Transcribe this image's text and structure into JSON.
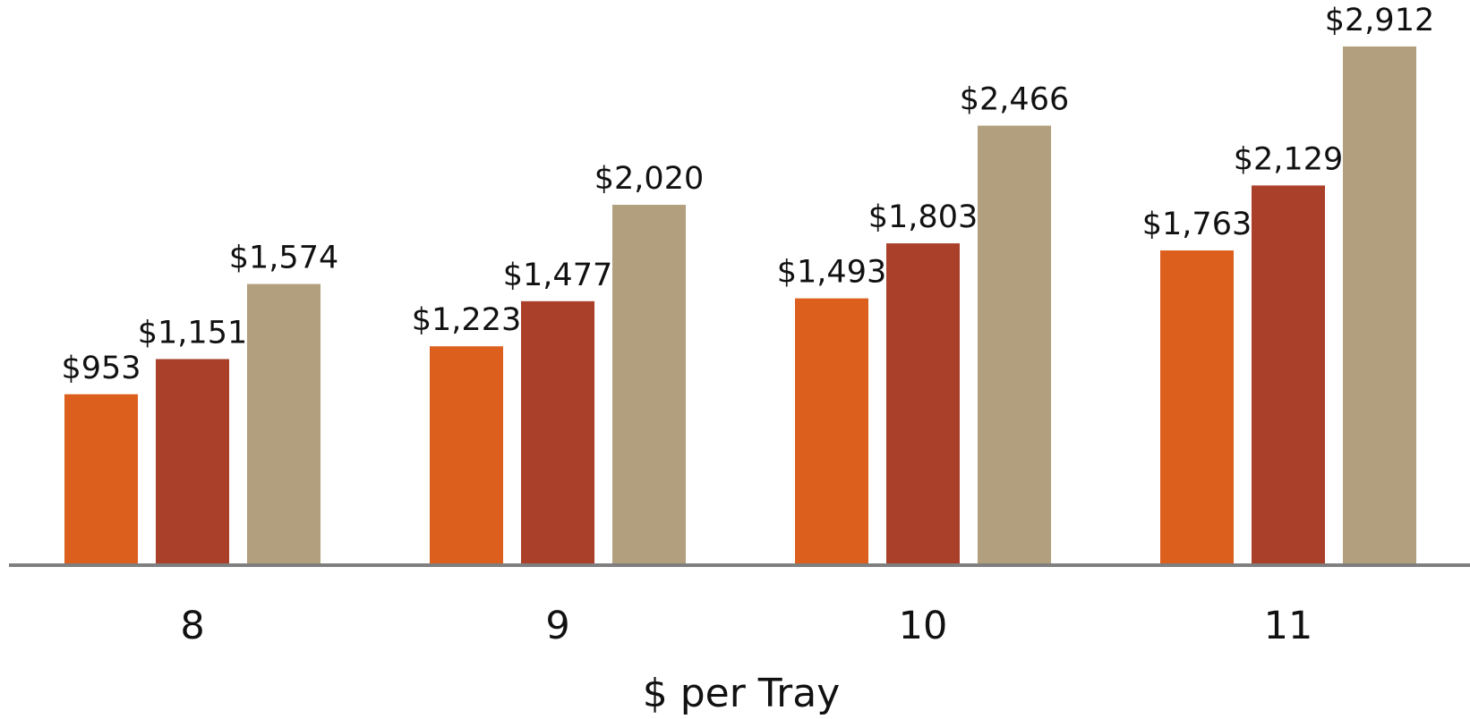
{
  "chart_data": {
    "type": "bar",
    "categories": [
      "8",
      "9",
      "10",
      "11"
    ],
    "series": [
      {
        "values": [
          953,
          1223,
          1493,
          1763
        ],
        "color": "#DC5F1D"
      },
      {
        "values": [
          1151,
          1477,
          1803,
          2129
        ],
        "color": "#AA402A"
      },
      {
        "values": [
          1574,
          2020,
          2466,
          2912
        ],
        "color": "#B19F7D"
      }
    ],
    "data_labels": [
      [
        "$953",
        "$1,223",
        "$1,493",
        "$1,763"
      ],
      [
        "$1,151",
        "$1,477",
        "$1,803",
        "$2,129"
      ],
      [
        "$1,574",
        "$2,020",
        "$2,466",
        "$2,912"
      ]
    ],
    "xlabel": "$ per Tray",
    "ylabel": "",
    "ylim": [
      0,
      3000
    ],
    "grid": false,
    "legend": "none",
    "axis_color": "#7F7F7F"
  }
}
